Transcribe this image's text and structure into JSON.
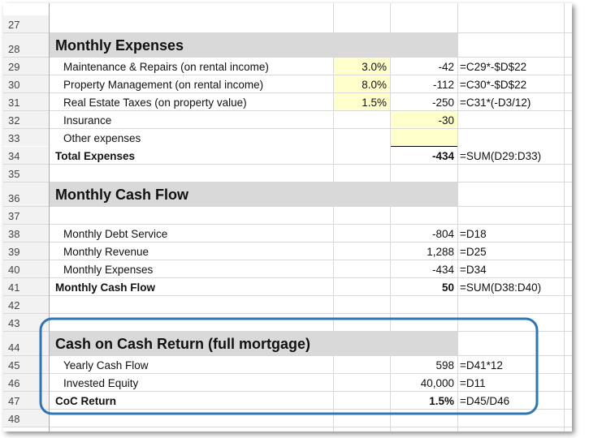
{
  "rows": [
    {
      "number": "27"
    },
    {
      "number": "28",
      "label": "Monthly Expenses"
    },
    {
      "number": "29",
      "label": "Maintenance & Repairs (on rental income)",
      "pct": "3.0%",
      "value": "-42",
      "formula": "=C29*-$D$22"
    },
    {
      "number": "30",
      "label": "Property Management (on rental income)",
      "pct": "8.0%",
      "value": "-112",
      "formula": "=C30*-$D$22"
    },
    {
      "number": "31",
      "label": "Real Estate Taxes (on property value)",
      "pct": "1.5%",
      "value": "-250",
      "formula": "=C31*(-D3/12)"
    },
    {
      "number": "32",
      "label": "Insurance",
      "value": "-30"
    },
    {
      "number": "33",
      "label": "Other expenses"
    },
    {
      "number": "34",
      "label": "Total Expenses",
      "value": "-434",
      "formula": "=SUM(D29:D33)"
    },
    {
      "number": "35"
    },
    {
      "number": "36",
      "label": "Monthly Cash Flow"
    },
    {
      "number": "37"
    },
    {
      "number": "38",
      "label": "Monthly Debt Service",
      "value": "-804",
      "formula": "=D18"
    },
    {
      "number": "39",
      "label": "Monthly Revenue",
      "value": "1,288",
      "formula": "=D25"
    },
    {
      "number": "40",
      "label": "Monthly Expenses",
      "value": "-434",
      "formula": "=D34"
    },
    {
      "number": "41",
      "label": "Monthly Cash Flow",
      "value": "50",
      "formula": "=SUM(D38:D40)"
    },
    {
      "number": "42"
    },
    {
      "number": "43"
    },
    {
      "number": "44",
      "label": "Cash on Cash Return (full mortgage)"
    },
    {
      "number": "45",
      "label": "Yearly Cash Flow",
      "value": "598",
      "formula": "=D41*12"
    },
    {
      "number": "46",
      "label": "Invested Equity",
      "value": "40,000",
      "formula": "=D11"
    },
    {
      "number": "47",
      "label": "CoC Return",
      "value": "1.5%",
      "formula": "=D45/D46"
    },
    {
      "number": "48"
    }
  ]
}
